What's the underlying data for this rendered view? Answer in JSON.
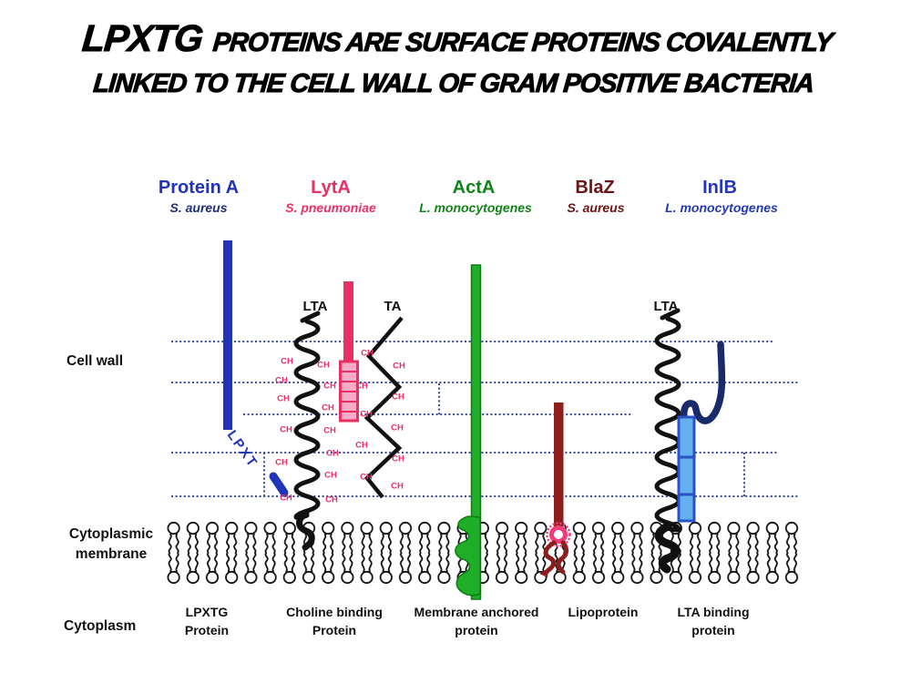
{
  "title": {
    "highlight": "LPXTG",
    "line1_rest": "PROTEINS ARE SURFACE PROTEINS COVALENTLY",
    "line2": "LINKED TO THE CELL WALL OF GRAM POSITIVE BACTERIA"
  },
  "columns": [
    {
      "name": "Protein A",
      "species": "S. aureus",
      "name_color": "#2133b8",
      "species_color": "#1e2f7a",
      "type_line1": "LPXTG",
      "type_line2": "Protein"
    },
    {
      "name": "LytA",
      "species": "S. pneumoniae",
      "name_color": "#ea2f63",
      "species_color": "#ea2f63",
      "type_line1": "Choline binding",
      "type_line2": "Protein"
    },
    {
      "name": "ActA",
      "species": "L. monocytogenes",
      "name_color": "#12831a",
      "species_color": "#12831a",
      "type_line1": "Membrane anchored",
      "type_line2": "protein"
    },
    {
      "name": "BlaZ",
      "species": "S. aureus",
      "name_color": "#6e1414",
      "species_color": "#6e1414",
      "type_line1": "Lipoprotein",
      "type_line2": ""
    },
    {
      "name": "InlB",
      "species": "L. monocytogenes",
      "name_color": "#2438b8",
      "species_color": "#2438b8",
      "type_line1": "LTA binding",
      "type_line2": "protein"
    }
  ],
  "regions": {
    "cell_wall": "Cell wall",
    "membrane_line1": "Cytoplasmic",
    "membrane_line2": "membrane",
    "cytoplasm": "Cytoplasm"
  },
  "polymers": {
    "lta_left": "LTA",
    "ta": "TA",
    "lta_right": "LTA"
  },
  "annotations": {
    "sorting_signal": "LPXT",
    "repeat_unit": "CH"
  },
  "colors": {
    "protein_a": "#2133b8",
    "lyta": "#ea2f63",
    "lyta_light": "#f8abc6",
    "acta": "#1fae27",
    "acta_dark": "#0e7d13",
    "blaz": "#8f1d1d",
    "blaz_anchor": "#f23d7c",
    "inlb_hook": "#1b2a6b",
    "inlb_box": "#62b0ee",
    "inlb_box_border": "#2a52c4",
    "dotted_line": "#3a4a9a",
    "ch": "#e83067",
    "black": "#111111"
  }
}
